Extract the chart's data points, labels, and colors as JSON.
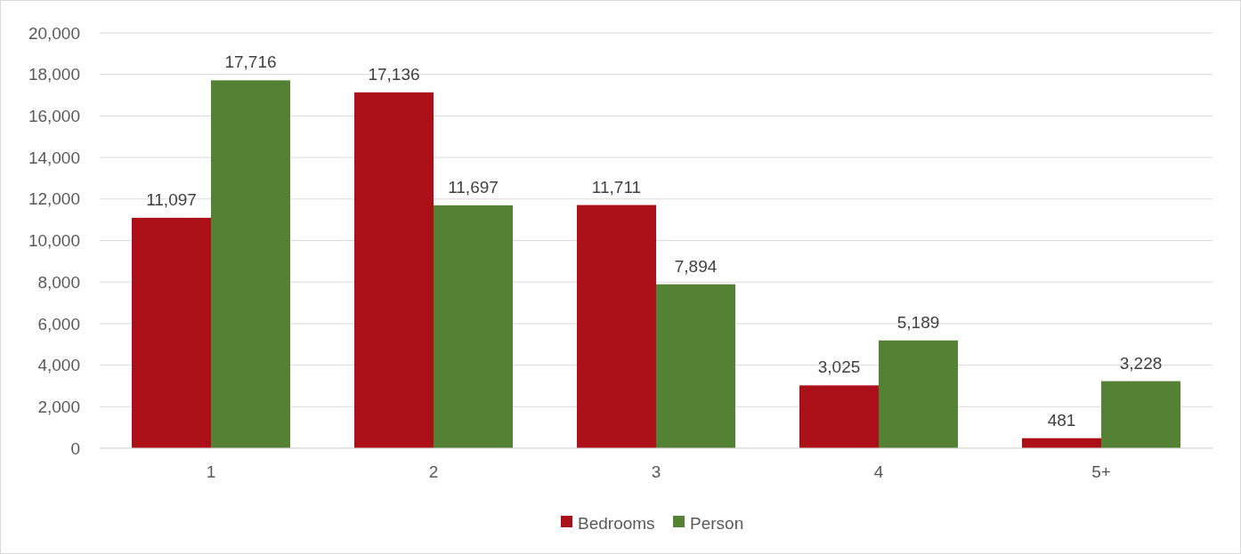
{
  "chart_data": {
    "type": "bar",
    "categories": [
      "1",
      "2",
      "3",
      "4",
      "5+"
    ],
    "series": [
      {
        "name": "Bedrooms",
        "color": "#ab1018",
        "values": [
          11097,
          17136,
          11711,
          3025,
          481
        ],
        "value_labels": [
          "11,097",
          "17,136",
          "11,711",
          "3,025",
          "481"
        ]
      },
      {
        "name": "Person",
        "color": "#548235",
        "values": [
          17716,
          11697,
          7894,
          5189,
          3228
        ],
        "value_labels": [
          "17,716",
          "11,697",
          "7,894",
          "5,189",
          "3,228"
        ]
      }
    ],
    "ylim": [
      0,
      20000
    ],
    "yticks": [
      {
        "value": 0,
        "label": "0"
      },
      {
        "value": 2000,
        "label": "2,000"
      },
      {
        "value": 4000,
        "label": "4,000"
      },
      {
        "value": 6000,
        "label": "6,000"
      },
      {
        "value": 8000,
        "label": "8,000"
      },
      {
        "value": 10000,
        "label": "10,000"
      },
      {
        "value": 12000,
        "label": "12,000"
      },
      {
        "value": 14000,
        "label": "14,000"
      },
      {
        "value": 16000,
        "label": "16,000"
      },
      {
        "value": 18000,
        "label": "18,000"
      },
      {
        "value": 20000,
        "label": "20,000"
      }
    ],
    "grid": "y",
    "legend": "bottom"
  }
}
